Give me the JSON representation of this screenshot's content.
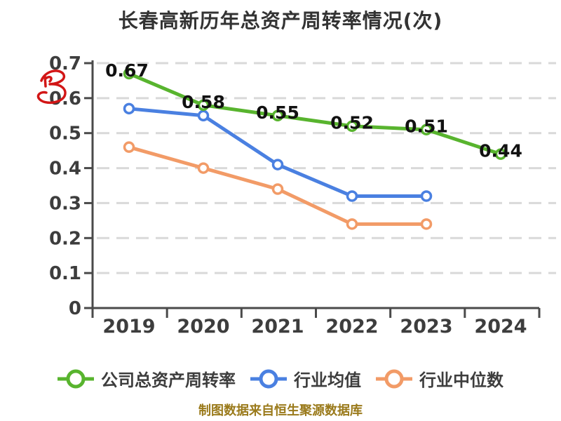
{
  "title": "长春高新历年总资产周转率情况(次)",
  "watermark": {
    "name": "red-scribble",
    "color": "#d21616"
  },
  "chart_data": {
    "type": "line",
    "title": "长春高新历年总资产周转率情况(次)",
    "categories": [
      "2019",
      "2020",
      "2021",
      "2022",
      "2023",
      "2024"
    ],
    "series": [
      {
        "name": "公司总资产周转率",
        "color": "#58b42e",
        "values": [
          0.67,
          0.58,
          0.55,
          0.52,
          0.51,
          0.44
        ],
        "point_labels": [
          "0.67",
          "0.58",
          "0.55",
          "0.52",
          "0.51",
          "0.44"
        ]
      },
      {
        "name": "行业均值",
        "color": "#4a80e1",
        "values": [
          0.57,
          0.55,
          0.41,
          0.32,
          0.32,
          null
        ],
        "point_labels": []
      },
      {
        "name": "行业中位数",
        "color": "#f29b67",
        "values": [
          0.46,
          0.4,
          0.34,
          0.24,
          0.24,
          null
        ],
        "point_labels": []
      }
    ],
    "ylim": [
      0,
      0.7
    ],
    "yticks": [
      0,
      0.1,
      0.2,
      0.3,
      0.4,
      0.5,
      0.6,
      0.7
    ],
    "xlabel": "",
    "ylabel": "",
    "grid": true,
    "legend_position": "bottom",
    "styles": {
      "grid_color": "#d9d9d9",
      "axis_color": "#4a4a4a",
      "tick_label_color": "#3d3d3d",
      "data_label_color": "#111111"
    }
  },
  "footer": {
    "source_note": "制图数据来自恒生聚源数据库",
    "color": "#9a7a1b"
  }
}
